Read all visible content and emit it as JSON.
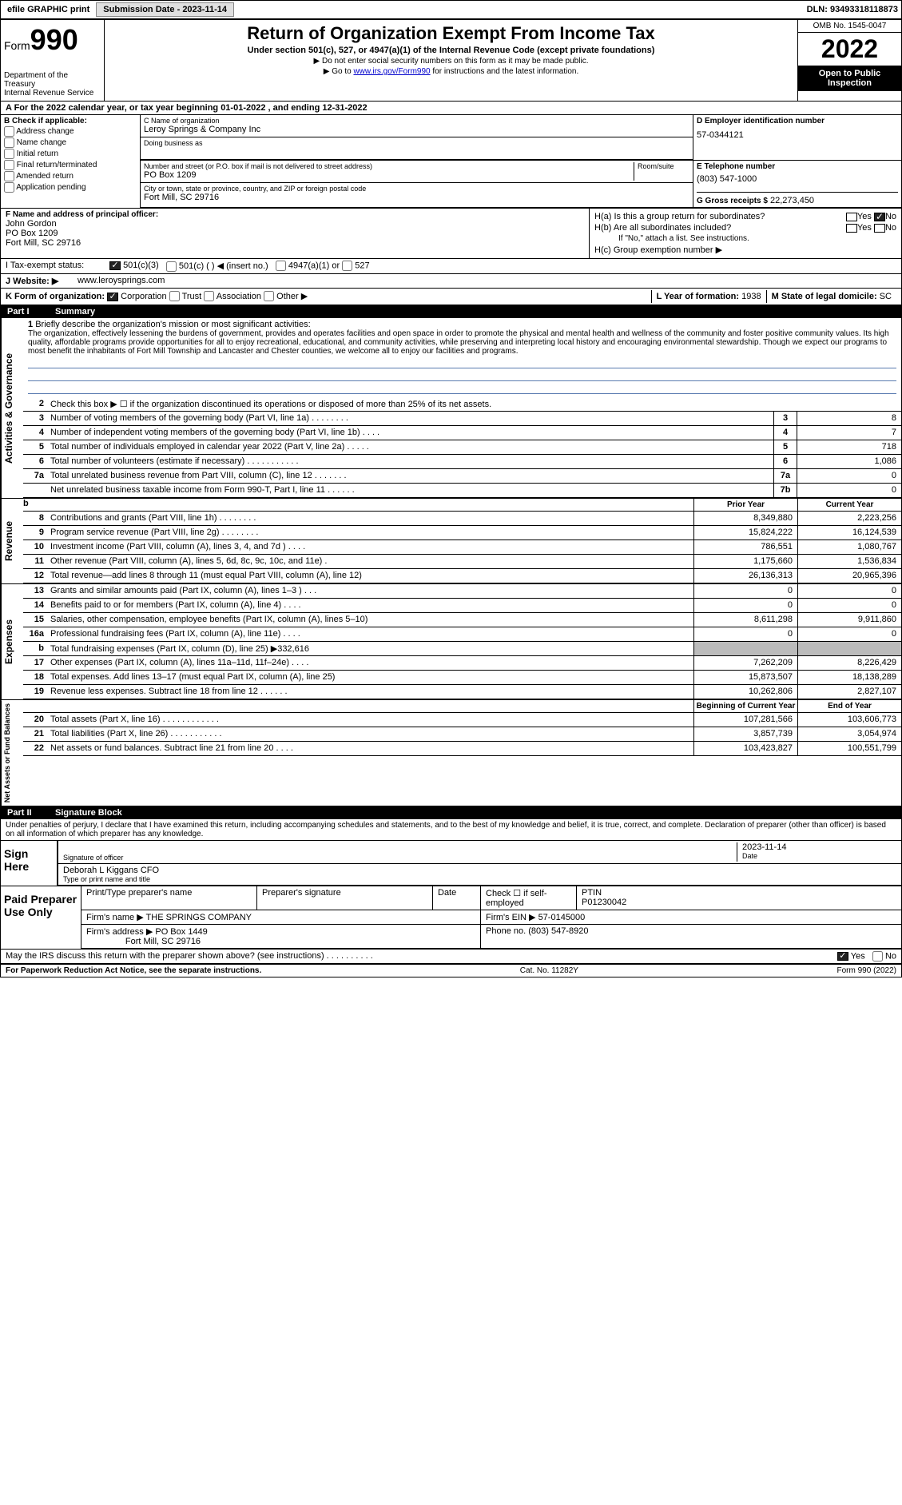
{
  "topbar": {
    "efile": "efile GRAPHIC print",
    "submission_label": "Submission Date - 2023-11-14",
    "dln": "DLN: 93493318118873"
  },
  "header": {
    "form_label": "Form",
    "form_num": "990",
    "dept": "Department of the Treasury",
    "irs": "Internal Revenue Service",
    "title": "Return of Organization Exempt From Income Tax",
    "sub1": "Under section 501(c), 527, or 4947(a)(1) of the Internal Revenue Code (except private foundations)",
    "sub2": "▶ Do not enter social security numbers on this form as it may be made public.",
    "sub3_pre": "▶ Go to ",
    "sub3_link": "www.irs.gov/Form990",
    "sub3_post": " for instructions and the latest information.",
    "omb": "OMB No. 1545-0047",
    "year": "2022",
    "inspect": "Open to Public Inspection"
  },
  "boxA": "A For the 2022 calendar year, or tax year beginning 01-01-2022   , and ending 12-31-2022",
  "boxB": {
    "label": "B Check if applicable:",
    "items": [
      "Address change",
      "Name change",
      "Initial return",
      "Final return/terminated",
      "Amended return",
      "Application pending"
    ]
  },
  "boxC": {
    "name_lbl": "C Name of organization",
    "name": "Leroy Springs & Company Inc",
    "dba_lbl": "Doing business as",
    "dba": "",
    "addr_lbl": "Number and street (or P.O. box if mail is not delivered to street address)",
    "room_lbl": "Room/suite",
    "addr": "PO Box 1209",
    "city_lbl": "City or town, state or province, country, and ZIP or foreign postal code",
    "city": "Fort Mill, SC  29716"
  },
  "boxD": {
    "lbl": "D Employer identification number",
    "val": "57-0344121"
  },
  "boxE": {
    "lbl": "E Telephone number",
    "val": "(803) 547-1000"
  },
  "boxG": {
    "lbl": "G Gross receipts $",
    "val": "22,273,450"
  },
  "boxF": {
    "lbl": "F  Name and address of principal officer:",
    "name": "John Gordon",
    "addr1": "PO Box 1209",
    "addr2": "Fort Mill, SC  29716"
  },
  "boxH": {
    "a": "H(a)  Is this a group return for subordinates?",
    "b": "H(b)  Are all subordinates included?",
    "b_note": "If \"No,\" attach a list. See instructions.",
    "c": "H(c)  Group exemption number ▶",
    "yes": "Yes",
    "no": "No"
  },
  "boxI": {
    "lbl": "I  Tax-exempt status:",
    "opts": [
      "501(c)(3)",
      "501(c) (  ) ◀ (insert no.)",
      "4947(a)(1) or",
      "527"
    ]
  },
  "boxJ": {
    "lbl": "J  Website: ▶",
    "val": "www.leroysprings.com"
  },
  "boxK": {
    "lbl": "K Form of organization:",
    "opts": [
      "Corporation",
      "Trust",
      "Association",
      "Other ▶"
    ]
  },
  "boxL": {
    "lbl": "L Year of formation:",
    "val": "1938"
  },
  "boxM": {
    "lbl": "M State of legal domicile:",
    "val": "SC"
  },
  "part1": {
    "num": "Part I",
    "title": "Summary"
  },
  "mission": {
    "num": "1",
    "lbl": "Briefly describe the organization's mission or most significant activities:",
    "txt": "The organization, effectively lessening the burdens of government, provides and operates facilities and open space in order to promote the physical and mental health and wellness of the community and foster positive community values. Its high quality, affordable programs provide opportunities for all to enjoy recreational, educational, and community activities, while preserving and interpreting local history and encouraging environmental stewardship. Though we expect our programs to most benefit the inhabitants of Fort Mill Township and Lancaster and Chester counties, we welcome all to enjoy our facilities and programs."
  },
  "vtabs": {
    "gov": "Activities & Governance",
    "rev": "Revenue",
    "exp": "Expenses",
    "net": "Net Assets or Fund Balances"
  },
  "lines_gov": [
    {
      "n": "2",
      "t": "Check this box ▶ ☐  if the organization discontinued its operations or disposed of more than 25% of its net assets."
    },
    {
      "n": "3",
      "t": "Number of voting members of the governing body (Part VI, line 1a)  .   .   .   .   .   .   .   .",
      "cn": "3",
      "v": "8"
    },
    {
      "n": "4",
      "t": "Number of independent voting members of the governing body (Part VI, line 1b)  .   .   .   .",
      "cn": "4",
      "v": "7"
    },
    {
      "n": "5",
      "t": "Total number of individuals employed in calendar year 2022 (Part V, line 2a)   .   .   .   .   .",
      "cn": "5",
      "v": "718"
    },
    {
      "n": "6",
      "t": "Total number of volunteers (estimate if necessary)   .   .   .   .   .   .   .   .   .   .   .",
      "cn": "6",
      "v": "1,086"
    },
    {
      "n": "7a",
      "t": "Total unrelated business revenue from Part VIII, column (C), line 12  .   .   .   .   .   .   .",
      "cn": "7a",
      "v": "0"
    },
    {
      "n": "",
      "t": "Net unrelated business taxable income from Form 990-T, Part I, line 11  .   .   .   .   .   .",
      "cn": "7b",
      "v": "0"
    }
  ],
  "hdr_py": "Prior Year",
  "hdr_cy": "Current Year",
  "lines_rev": [
    {
      "n": "8",
      "t": "Contributions and grants (Part VIII, line 1h)  .   .   .   .   .   .   .   .",
      "py": "8,349,880",
      "cy": "2,223,256"
    },
    {
      "n": "9",
      "t": "Program service revenue (Part VIII, line 2g)  .   .   .   .   .   .   .   .",
      "py": "15,824,222",
      "cy": "16,124,539"
    },
    {
      "n": "10",
      "t": "Investment income (Part VIII, column (A), lines 3, 4, and 7d )  .   .   .   .",
      "py": "786,551",
      "cy": "1,080,767"
    },
    {
      "n": "11",
      "t": "Other revenue (Part VIII, column (A), lines 5, 6d, 8c, 9c, 10c, and 11e)  .",
      "py": "1,175,660",
      "cy": "1,536,834"
    },
    {
      "n": "12",
      "t": "Total revenue—add lines 8 through 11 (must equal Part VIII, column (A), line 12)",
      "py": "26,136,313",
      "cy": "20,965,396"
    }
  ],
  "lines_exp": [
    {
      "n": "13",
      "t": "Grants and similar amounts paid (Part IX, column (A), lines 1–3 )  .   .   .",
      "py": "0",
      "cy": "0"
    },
    {
      "n": "14",
      "t": "Benefits paid to or for members (Part IX, column (A), line 4)  .   .   .   .",
      "py": "0",
      "cy": "0"
    },
    {
      "n": "15",
      "t": "Salaries, other compensation, employee benefits (Part IX, column (A), lines 5–10)",
      "py": "8,611,298",
      "cy": "9,911,860"
    },
    {
      "n": "16a",
      "t": "Professional fundraising fees (Part IX, column (A), line 11e)  .   .   .   .",
      "py": "0",
      "cy": "0"
    },
    {
      "n": "b",
      "t": "Total fundraising expenses (Part IX, column (D), line 25) ▶332,616",
      "shade": true
    },
    {
      "n": "17",
      "t": "Other expenses (Part IX, column (A), lines 11a–11d, 11f–24e)  .   .   .   .",
      "py": "7,262,209",
      "cy": "8,226,429"
    },
    {
      "n": "18",
      "t": "Total expenses. Add lines 13–17 (must equal Part IX, column (A), line 25)",
      "py": "15,873,507",
      "cy": "18,138,289"
    },
    {
      "n": "19",
      "t": "Revenue less expenses. Subtract line 18 from line 12  .   .   .   .   .   .",
      "py": "10,262,806",
      "cy": "2,827,107"
    }
  ],
  "hdr_boy": "Beginning of Current Year",
  "hdr_eoy": "End of Year",
  "lines_net": [
    {
      "n": "20",
      "t": "Total assets (Part X, line 16)  .   .   .   .   .   .   .   .   .   .   .   .",
      "py": "107,281,566",
      "cy": "103,606,773"
    },
    {
      "n": "21",
      "t": "Total liabilities (Part X, line 26)  .   .   .   .   .   .   .   .   .   .   .",
      "py": "3,857,739",
      "cy": "3,054,974"
    },
    {
      "n": "22",
      "t": "Net assets or fund balances. Subtract line 21 from line 20  .   .   .   .",
      "py": "103,423,827",
      "cy": "100,551,799"
    }
  ],
  "part2": {
    "num": "Part II",
    "title": "Signature Block"
  },
  "perjury": "Under penalties of perjury, I declare that I have examined this return, including accompanying schedules and statements, and to the best of my knowledge and belief, it is true, correct, and complete. Declaration of preparer (other than officer) is based on all information of which preparer has any knowledge.",
  "sign": {
    "here": "Sign Here",
    "sig_lbl": "Signature of officer",
    "date_lbl": "Date",
    "date": "2023-11-14",
    "name": "Deborah L Kiggans CFO",
    "name_lbl": "Type or print name and title"
  },
  "paid": {
    "title": "Paid Preparer Use Only",
    "col1": "Print/Type preparer's name",
    "col2": "Preparer's signature",
    "col3": "Date",
    "col4": "Check ☐ if self-employed",
    "col5_lbl": "PTIN",
    "col5": "P01230042",
    "firm_lbl": "Firm's name   ▶",
    "firm": "THE SPRINGS COMPANY",
    "ein_lbl": "Firm's EIN ▶",
    "ein": "57-0145000",
    "addr_lbl": "Firm's address ▶",
    "addr1": "PO Box 1449",
    "addr2": "Fort Mill, SC  29716",
    "phone_lbl": "Phone no.",
    "phone": "(803) 547-8920"
  },
  "discuss": "May the IRS discuss this return with the preparer shown above? (see instructions)  .   .   .   .   .   .   .   .   .   .",
  "foot": {
    "l": "For Paperwork Reduction Act Notice, see the separate instructions.",
    "m": "Cat. No. 11282Y",
    "r": "Form 990 (2022)"
  },
  "colors": {
    "link": "#0000cc",
    "rule": "#5a7bb0"
  }
}
